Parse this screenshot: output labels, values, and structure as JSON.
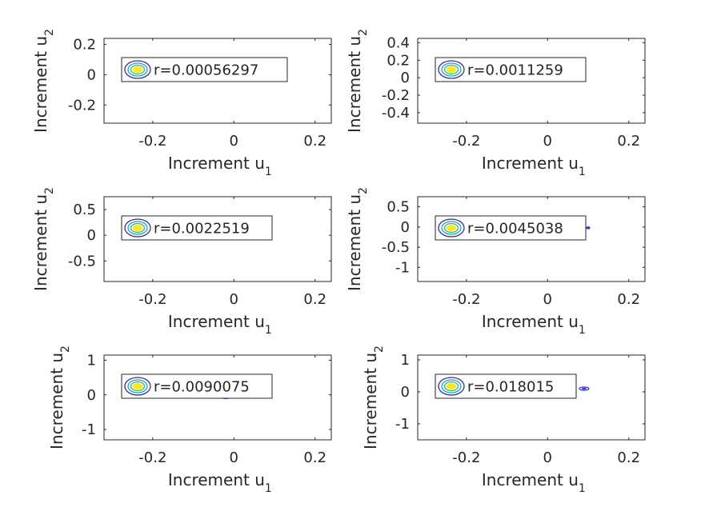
{
  "chart_data": [
    {
      "type": "contour",
      "xlabel": "Increment u",
      "xlabel_sub": "1",
      "ylabel": "Increment u",
      "ylabel_sub": "2",
      "xlim": [
        -0.32,
        0.24
      ],
      "ylim": [
        -0.32,
        0.24
      ],
      "xticks": [
        -0.2,
        0,
        0.2
      ],
      "xtick_labels": [
        "-0.2",
        "0",
        "0.2"
      ],
      "yticks": [
        0.2,
        0,
        -0.2
      ],
      "ytick_labels": [
        "0.2",
        "0",
        "-0.2"
      ],
      "legend": "r=0.00056297",
      "legend_position": "top-left",
      "marks": [
        {
          "x": -0.04,
          "y": -0.01,
          "spread": 0.002
        }
      ]
    },
    {
      "type": "contour",
      "xlabel": "Increment u",
      "xlabel_sub": "1",
      "ylabel": "Increment u",
      "ylabel_sub": "2",
      "xlim": [
        -0.32,
        0.24
      ],
      "ylim": [
        -0.52,
        0.45
      ],
      "xticks": [
        -0.2,
        0,
        0.2
      ],
      "xtick_labels": [
        "-0.2",
        "0",
        "0.2"
      ],
      "yticks": [
        0.4,
        0.2,
        0,
        -0.2,
        -0.4
      ],
      "ytick_labels": [
        "0.4",
        "0.2",
        "0",
        "-0.2",
        "-0.4"
      ],
      "legend": "r=0.0011259",
      "legend_position": "top-left",
      "marks": []
    },
    {
      "type": "contour",
      "xlabel": "Increment u",
      "xlabel_sub": "1",
      "ylabel": "Increment u",
      "ylabel_sub": "2",
      "xlim": [
        -0.32,
        0.24
      ],
      "ylim": [
        -0.9,
        0.75
      ],
      "xticks": [
        -0.2,
        0,
        0.2
      ],
      "xtick_labels": [
        "-0.2",
        "0",
        "0.2"
      ],
      "yticks": [
        0.5,
        0,
        -0.5
      ],
      "ytick_labels": [
        "0.5",
        "0",
        "-0.5"
      ],
      "legend": "r=0.0022519",
      "legend_position": "top-left",
      "marks": []
    },
    {
      "type": "contour",
      "xlabel": "Increment u",
      "xlabel_sub": "1",
      "ylabel": "Increment u",
      "ylabel_sub": "2",
      "xlim": [
        -0.32,
        0.24
      ],
      "ylim": [
        -1.35,
        0.75
      ],
      "xticks": [
        -0.2,
        0,
        0.2
      ],
      "xtick_labels": [
        "-0.2",
        "0",
        "0.2"
      ],
      "yticks": [
        0.5,
        0,
        -0.5,
        -1
      ],
      "ytick_labels": [
        "0.5",
        "0",
        "-0.5",
        "-1"
      ],
      "legend": "r=0.0045038",
      "legend_position": "top-left",
      "marks": [
        {
          "x": 0.1,
          "y": -0.02,
          "spread": 0.002
        }
      ]
    },
    {
      "type": "contour",
      "xlabel": "Increment u",
      "xlabel_sub": "1",
      "ylabel": "Increment u",
      "ylabel_sub": "2",
      "xlim": [
        -0.32,
        0.24
      ],
      "ylim": [
        -1.3,
        1.15
      ],
      "xticks": [
        -0.2,
        0,
        0.2
      ],
      "xtick_labels": [
        "-0.2",
        "0",
        "0.2"
      ],
      "yticks": [
        1,
        0,
        -1
      ],
      "ytick_labels": [
        "1",
        "0",
        "-1"
      ],
      "legend": "r=0.0090075",
      "legend_position": "top-left",
      "marks": [
        {
          "x": -0.08,
          "y": -0.05,
          "spread": 0.01
        },
        {
          "x": -0.02,
          "y": -0.06,
          "spread": 0.01
        }
      ]
    },
    {
      "type": "contour",
      "xlabel": "Increment u",
      "xlabel_sub": "1",
      "ylabel": "Increment u",
      "ylabel_sub": "2",
      "xlim": [
        -0.32,
        0.24
      ],
      "ylim": [
        -1.5,
        1.15
      ],
      "xticks": [
        -0.2,
        0,
        0.2
      ],
      "xtick_labels": [
        "-0.2",
        "0",
        "0.2"
      ],
      "yticks": [
        1,
        0,
        -1
      ],
      "ytick_labels": [
        "1",
        "0",
        "-1"
      ],
      "legend": "r=0.018015",
      "legend_position": "top-left",
      "marks": [
        {
          "x": 0.09,
          "y": 0.1,
          "spread": 0.01
        },
        {
          "x": -0.05,
          "y": -0.05,
          "spread": 0.01
        }
      ]
    }
  ],
  "colors": {
    "axes": "#262626",
    "legend_outer": "#3b2d8f",
    "legend_mid": "#21a0c8",
    "legend_inner": "#2fb67c",
    "legend_core": "#f9e91d",
    "data_marks": "#2b2bd6"
  }
}
